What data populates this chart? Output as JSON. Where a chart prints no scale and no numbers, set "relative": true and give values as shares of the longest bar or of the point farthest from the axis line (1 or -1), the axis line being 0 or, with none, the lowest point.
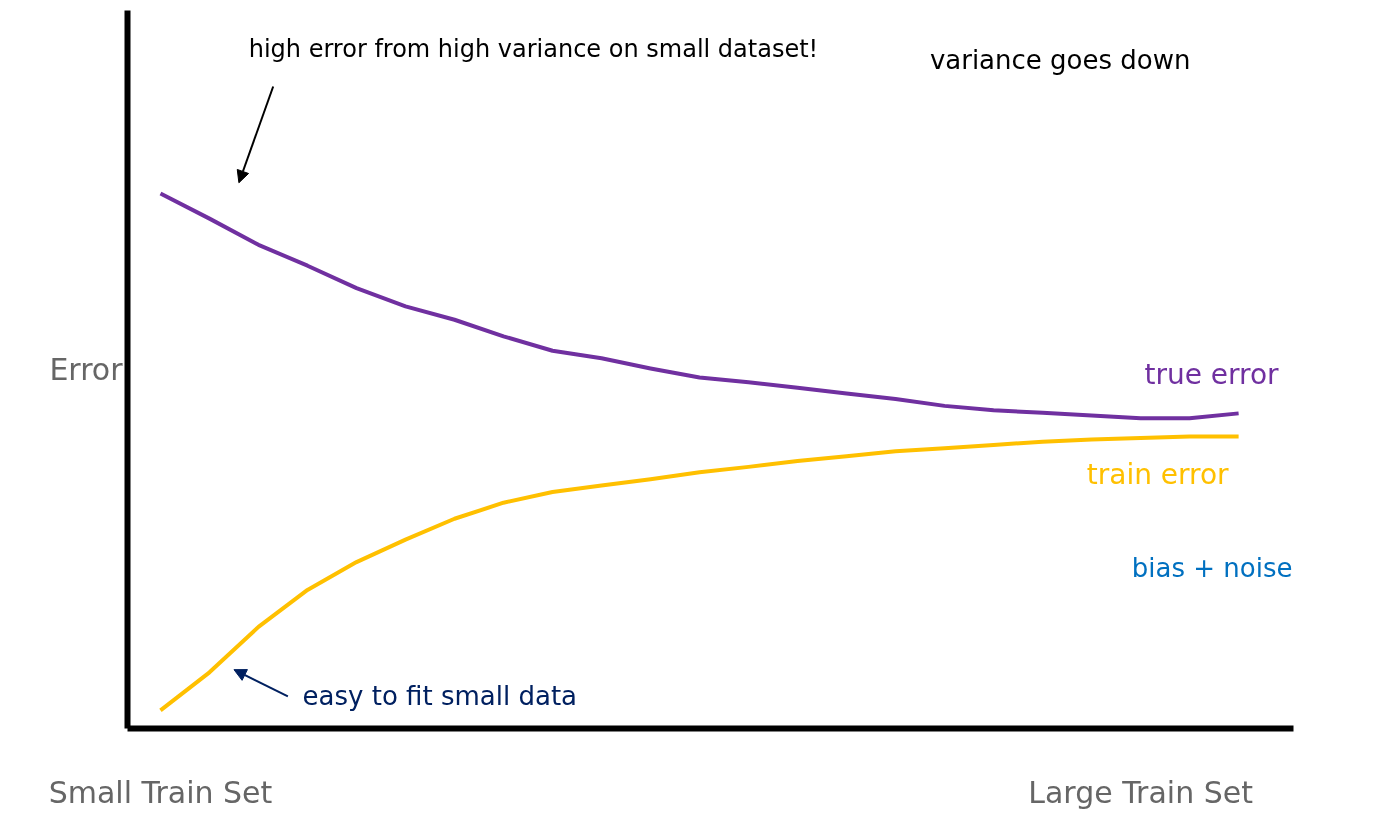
{
  "chart_data": {
    "type": "line",
    "relative": true,
    "ylabel": "Error",
    "categories": [
      "Small Train Set",
      null,
      null,
      null,
      null,
      null,
      null,
      null,
      null,
      null,
      null,
      null,
      null,
      null,
      null,
      null,
      null,
      null,
      null,
      null,
      "Large Train Set",
      null,
      null
    ],
    "line_style": "solid",
    "series": [
      {
        "name": "true error",
        "color": "#7030a0",
        "values": [
          1.0,
          0.953,
          0.904,
          0.865,
          0.823,
          0.789,
          0.764,
          0.733,
          0.706,
          0.692,
          0.673,
          0.656,
          0.647,
          0.637,
          0.626,
          0.616,
          0.603,
          0.595,
          0.59,
          0.585,
          0.58,
          0.58,
          0.589
        ]
      },
      {
        "name": "train error",
        "color": "#ffc000",
        "values": [
          0.034,
          0.105,
          0.19,
          0.259,
          0.311,
          0.353,
          0.392,
          0.422,
          0.442,
          0.454,
          0.466,
          0.479,
          0.489,
          0.5,
          0.509,
          0.518,
          0.524,
          0.53,
          0.536,
          0.54,
          0.543,
          0.546,
          0.546
        ]
      }
    ],
    "annotations": [
      "high error from high variance on small dataset!",
      "variance goes down",
      "easy to fit small data",
      "bias + noise"
    ]
  }
}
